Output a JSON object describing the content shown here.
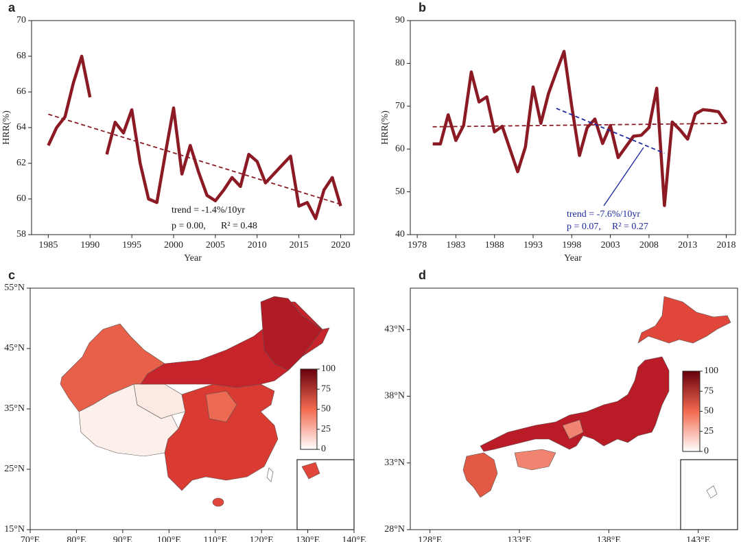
{
  "chart_data": [
    {
      "type": "line",
      "panel": "a",
      "ylabel": "HRR(%)",
      "xlabel": "Year",
      "x": [
        1985,
        1986,
        1987,
        1988,
        1989,
        1990,
        1991,
        1992,
        1993,
        1994,
        1995,
        1996,
        1997,
        1998,
        1999,
        2000,
        2001,
        2002,
        2003,
        2004,
        2005,
        2006,
        2007,
        2008,
        2009,
        2010,
        2011,
        2012,
        2013,
        2014,
        2015,
        2016,
        2017,
        2018,
        2019,
        2020
      ],
      "xlim": [
        1983,
        2021.6
      ],
      "xticks": [
        1985,
        1990,
        1995,
        2000,
        2005,
        2010,
        2015,
        2020
      ],
      "ylim": [
        58,
        70
      ],
      "yticks": [
        58,
        60,
        62,
        64,
        66,
        68,
        70
      ],
      "series": [
        {
          "color": "#8b1a24",
          "values": [
            63.0,
            64.0,
            64.6,
            66.5,
            68.0,
            65.7,
            null,
            62.5,
            64.3,
            63.7,
            65.0,
            62.0,
            60.0,
            59.8,
            62.5,
            65.1,
            61.4,
            63.0,
            61.5,
            60.2,
            59.9,
            60.5,
            61.2,
            60.7,
            62.5,
            62.1,
            60.9,
            61.4,
            61.9,
            62.4,
            59.6,
            59.8,
            58.9,
            60.5,
            61.2,
            59.6
          ]
        }
      ],
      "trends": [
        {
          "color": "#8b1a24",
          "x": [
            1985,
            2020
          ],
          "values": [
            64.75,
            59.7
          ]
        }
      ],
      "annotations": [
        "trend = -1.4%/10yr",
        "p = 0.00,",
        "R² = 0.48"
      ],
      "annotation_color": "#111111"
    },
    {
      "type": "line",
      "panel": "b",
      "ylabel": "HRR(%)",
      "xlabel": "Year",
      "x": [
        1980,
        1981,
        1982,
        1983,
        1984,
        1985,
        1986,
        1987,
        1988,
        1989,
        1990,
        1991,
        1992,
        1993,
        1994,
        1995,
        1996,
        1997,
        1998,
        1999,
        2000,
        2001,
        2002,
        2003,
        2004,
        2005,
        2006,
        2007,
        2008,
        2009,
        2010,
        2011,
        2012,
        2013,
        2014,
        2015,
        2016,
        2017,
        2018
      ],
      "xlim": [
        1977.1,
        2019.2
      ],
      "xticks": [
        1978,
        1983,
        1988,
        1993,
        1998,
        2003,
        2008,
        2013,
        2018
      ],
      "ylim": [
        40,
        90
      ],
      "yticks": [
        40,
        50,
        60,
        70,
        80,
        90
      ],
      "series": [
        {
          "color": "#8b1a24",
          "values": [
            61.2,
            61.2,
            68,
            62,
            65.5,
            78,
            71,
            72.2,
            64,
            65.3,
            60,
            54.7,
            60.5,
            74.5,
            66,
            73,
            78,
            82.8,
            70,
            58.5,
            65,
            67,
            61.3,
            65.5,
            58,
            60.5,
            63,
            63.2,
            65,
            74.2,
            46.8,
            66.3,
            64.5,
            62.3,
            68.2,
            69.2,
            69,
            68.7,
            66
          ]
        }
      ],
      "trends": [
        {
          "color": "#8b1a24",
          "x": [
            1980,
            2018
          ],
          "values": [
            65.2,
            66
          ]
        },
        {
          "color": "#1f2aa0",
          "x": [
            1996,
            2010
          ],
          "values": [
            69.5,
            59
          ]
        }
      ],
      "annotations": [
        "trend = -7.6%/10yr",
        "p = 0.07,",
        "R² = 0.27"
      ],
      "annotation_color": "#1f2aa0"
    },
    {
      "type": "map",
      "panel": "c",
      "xlim": [
        70,
        140
      ],
      "xticks": [
        {
          "value": 70,
          "label": "70°E"
        },
        {
          "value": 80,
          "label": "80°E"
        },
        {
          "value": 90,
          "label": "90°E"
        },
        {
          "value": 100,
          "label": "100°E"
        },
        {
          "value": 110,
          "label": "110°E"
        },
        {
          "value": 120,
          "label": "120°E"
        },
        {
          "value": 130,
          "label": "130°E"
        },
        {
          "value": 140,
          "label": "140°E"
        }
      ],
      "ylim": [
        15,
        55
      ],
      "yticks": [
        {
          "value": 15,
          "label": "15°N"
        },
        {
          "value": 25,
          "label": "25°N"
        },
        {
          "value": 35,
          "label": "35°N"
        },
        {
          "value": 45,
          "label": "45°N"
        },
        {
          "value": 55,
          "label": "55°N"
        }
      ],
      "colorbar": {
        "lim": [
          0,
          100
        ],
        "ticks": [
          0,
          25,
          50,
          75,
          100
        ],
        "colors": [
          "#ffffff",
          "#f26a4f",
          "#67000d"
        ]
      }
    },
    {
      "type": "map",
      "panel": "d",
      "xlim": [
        126.9,
        145.2
      ],
      "xticks": [
        {
          "value": 128,
          "label": "128°E"
        },
        {
          "value": 133,
          "label": "133°E"
        },
        {
          "value": 138,
          "label": "138°E"
        },
        {
          "value": 143,
          "label": "143°E"
        }
      ],
      "ylim": [
        28,
        46.1
      ],
      "yticks": [
        {
          "value": 28,
          "label": "28°N"
        },
        {
          "value": 33,
          "label": "33°N"
        },
        {
          "value": 38,
          "label": "38°N"
        },
        {
          "value": 43,
          "label": "43°N"
        }
      ],
      "colorbar": {
        "lim": [
          0,
          100
        ],
        "ticks": [
          0,
          25,
          50,
          75,
          100
        ],
        "colors": [
          "#ffffff",
          "#f26a4f",
          "#67000d"
        ]
      }
    }
  ]
}
